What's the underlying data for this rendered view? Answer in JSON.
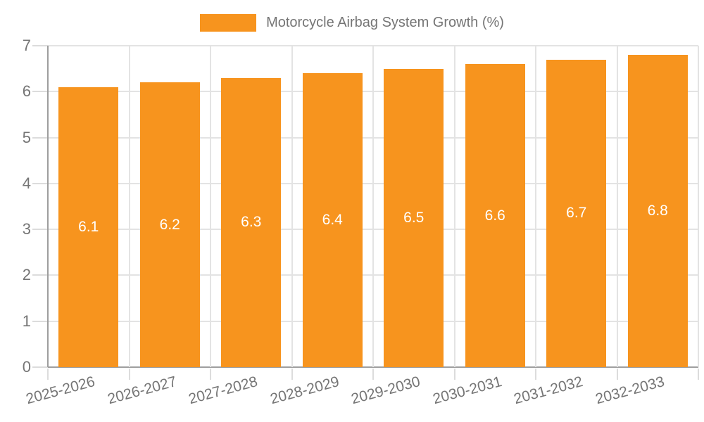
{
  "chart_data": {
    "type": "bar",
    "title": "Motorcycle Airbag System Growth (%)",
    "legend": [
      {
        "label": "Motorcycle Airbag System Growth (%)"
      }
    ],
    "legend_position": "top",
    "categories": [
      "2025-2026",
      "2026-2027",
      "2027-2028",
      "2028-2029",
      "2029-2030",
      "2030-2031",
      "2031-2032",
      "2032-2033"
    ],
    "series": [
      {
        "name": "Motorcycle Airbag System Growth (%)",
        "values": [
          6.1,
          6.2,
          6.3,
          6.4,
          6.5,
          6.6,
          6.7,
          6.8
        ]
      }
    ],
    "value_labels": [
      "6.1",
      "6.2",
      "6.3",
      "6.4",
      "6.5",
      "6.6",
      "6.7",
      "6.8"
    ],
    "value_label_position": "inside-center",
    "xlabel": "",
    "ylabel": "",
    "ylim": [
      0,
      7
    ],
    "yticks": [
      0,
      1,
      2,
      3,
      4,
      5,
      6,
      7
    ],
    "grid": true,
    "x_label_rotation_deg": -15
  },
  "colors": {
    "bar": "#F7941E",
    "axis_text": "#757575",
    "value_label_text": "#FFFFFF",
    "gridline": "#E3E3E3",
    "tick": "#DCDCDC",
    "axis_line": "#9E9E9E",
    "background": "#FFFFFF"
  }
}
